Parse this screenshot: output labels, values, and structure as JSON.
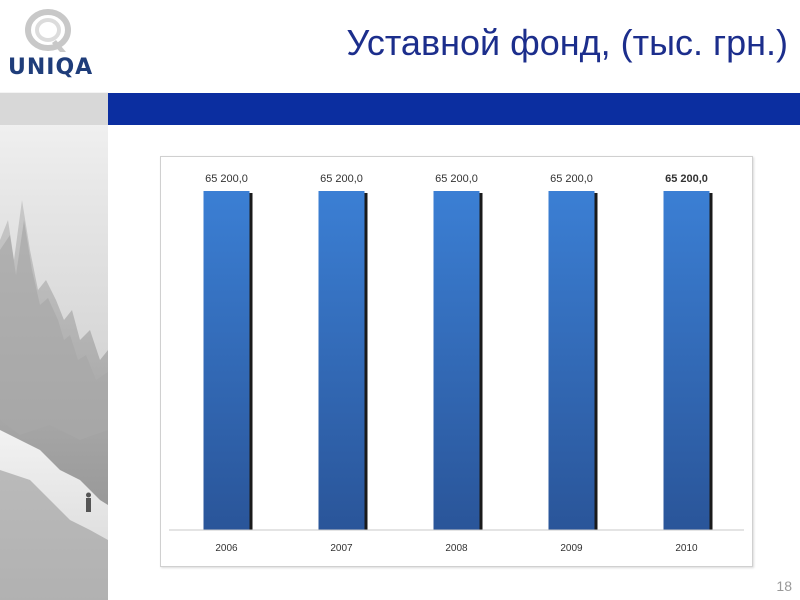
{
  "slide": {
    "title": "Уставной фонд, (тыс. грн.)",
    "page_number": "18"
  },
  "logo": {
    "text": "UNIQA"
  },
  "colors": {
    "title": "#1c2e8c",
    "band": "#0b2ea0",
    "bar_top": "#3b7fd4",
    "bar_bottom": "#2a5599",
    "label": "#333333"
  },
  "chart_data": {
    "type": "bar",
    "categories": [
      "2006",
      "2007",
      "2008",
      "2009",
      "2010"
    ],
    "values": [
      65200,
      65200,
      65200,
      65200,
      65200
    ],
    "data_labels": [
      "65 200,0",
      "65 200,0",
      "65 200,0",
      "65 200,0",
      "65 200,0"
    ],
    "bold_label_index": 4,
    "ylim": [
      0,
      65200
    ],
    "grid": false,
    "legend": "none"
  }
}
